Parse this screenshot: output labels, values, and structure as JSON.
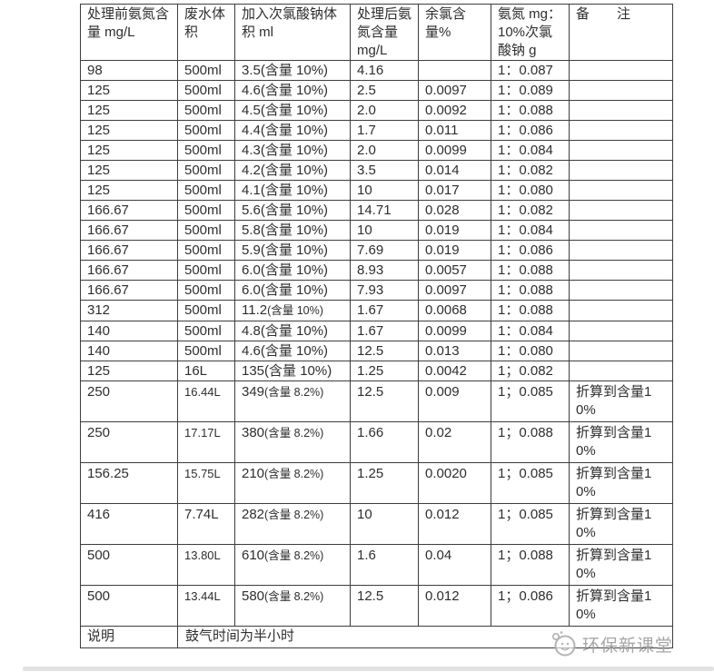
{
  "table": {
    "headers": [
      "处理前氨氮含量 mg/L",
      "废水体积",
      "加入次氯酸钠体积 ml",
      "处理后氨氮含量 mg/L",
      "余氯含量%",
      "氨氮 mg：10%次氯酸钠 g",
      "备　　注"
    ],
    "rows": [
      [
        "98",
        "500ml",
        "3.5(含量 10%)",
        "4.16",
        "",
        "1：0.087",
        ""
      ],
      [
        "125",
        "500ml",
        "4.6(含量 10%)",
        "2.5",
        "0.0097",
        "1：0.089",
        ""
      ],
      [
        "125",
        "500ml",
        "4.5(含量 10%)",
        "2.0",
        "0.0092",
        "1：0.088",
        ""
      ],
      [
        "125",
        "500ml",
        "4.4(含量 10%)",
        "1.7",
        "0.011",
        "1：0.086",
        ""
      ],
      [
        "125",
        "500ml",
        "4.3(含量 10%)",
        "2.0",
        "0.0099",
        "1：0.084",
        ""
      ],
      [
        "125",
        "500ml",
        "4.2(含量 10%)",
        "3.5",
        "0.014",
        "1：0.082",
        ""
      ],
      [
        "125",
        "500ml",
        "4.1(含量 10%)",
        "10",
        "0.017",
        "1：0.080",
        ""
      ],
      [
        "166.67",
        "500ml",
        "5.6(含量 10%)",
        "14.71",
        "0.028",
        "1：0.082",
        ""
      ],
      [
        "166.67",
        "500ml",
        "5.8(含量 10%)",
        "10",
        "0.019",
        "1：0.084",
        ""
      ],
      [
        "166.67",
        "500ml",
        "5.9(含量 10%)",
        "7.69",
        "0.019",
        "1：0.086",
        ""
      ],
      [
        "166.67",
        "500ml",
        "6.0(含量 10%)",
        "8.93",
        "0.0057",
        "1：0.088",
        ""
      ],
      [
        "166.67",
        "500ml",
        "6.0(含量 10%)",
        "7.93",
        "0.0097",
        "1：0.088",
        ""
      ],
      [
        "312",
        "500ml",
        "11.2(含量 10%)",
        "1.67",
        "0.0068",
        "1：0.088",
        ""
      ],
      [
        "140",
        "500ml",
        "4.8(含量 10%)",
        "1.67",
        "0.0099",
        "1：0.084",
        ""
      ],
      [
        "140",
        "500ml",
        "4.6(含量 10%)",
        "12.5",
        "0.013",
        "1：0.080",
        ""
      ],
      [
        "125",
        "16L",
        "135(含量 10%)",
        "1.25",
        "0.0042",
        "1；0.082",
        ""
      ],
      [
        "250",
        "16.44L",
        "349(含量 8.2%)",
        "12.5",
        "0.009",
        "1；0.085",
        "折算到含量10%"
      ],
      [
        "250",
        "17.17L",
        "380(含量 8.2%)",
        "1.66",
        "0.02",
        "1；0.088",
        "折算到含量10%"
      ],
      [
        "156.25",
        "15.75L",
        "210(含量 8.2%)",
        "1.25",
        "0.0020",
        "1；0.085",
        "折算到含量10%"
      ],
      [
        "416",
        "7.74L",
        "282(含量 8.2%)",
        "10",
        "0.012",
        "1；0.085",
        "折算到含量10%"
      ],
      [
        "500",
        "13.80L",
        "610(含量 8.2%)",
        "1.6",
        "0.04",
        "1；0.088",
        "折算到含量10%"
      ],
      [
        "500",
        "13.44L",
        "580(含量 8.2%)",
        "12.5",
        "0.012",
        "1；0.086",
        "折算到含量10%"
      ]
    ],
    "footer": {
      "label": "说明",
      "note": "鼓气时间为半小时"
    }
  },
  "watermark": {
    "text": "环保新课堂",
    "logo_icon": "cartoon-mascot-logo-icon"
  },
  "colors": {
    "border": "#3d3d3d",
    "text": "#2e2e2e",
    "watermark": "#9e9e9e",
    "bottom_bar": "#e2e2e2"
  }
}
